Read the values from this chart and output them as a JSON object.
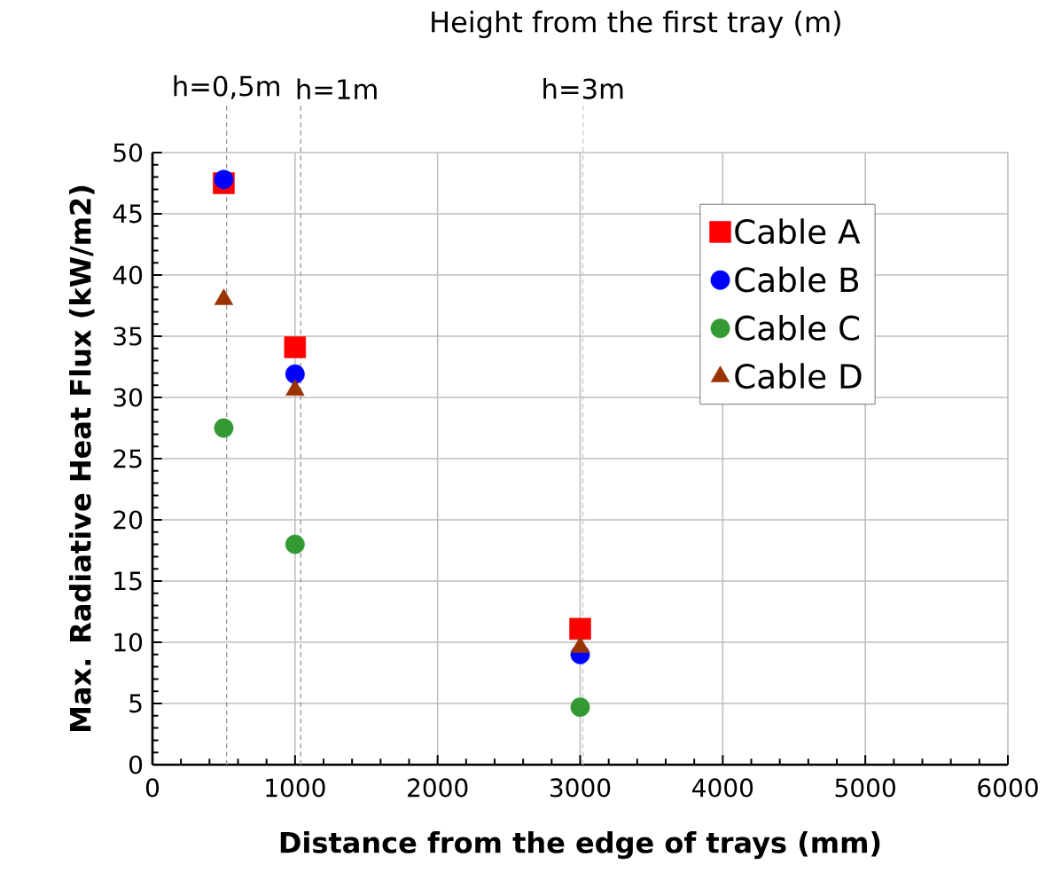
{
  "chart_data": {
    "type": "scatter",
    "title": "Height from the first tray (m)",
    "xlabel": "Distance from the edge of trays (mm)",
    "ylabel": "Max. Radiative Heat Flux (kW/m2)",
    "x": [
      500,
      1000,
      3000
    ],
    "series": [
      {
        "name": "Cable A",
        "color": "#ff0000",
        "marker": "square",
        "values": [
          47.5,
          34.1,
          11.1
        ]
      },
      {
        "name": "Cable B",
        "color": "#0000ff",
        "marker": "circle",
        "values": [
          47.8,
          31.9,
          9.0
        ]
      },
      {
        "name": "Cable C",
        "color": "#339933",
        "marker": "circle",
        "values": [
          27.5,
          18.0,
          4.7
        ]
      },
      {
        "name": "Cable D",
        "color": "#993300",
        "marker": "triangle",
        "values": [
          38.0,
          30.6,
          9.6
        ]
      }
    ],
    "xlim": [
      0,
      6000
    ],
    "ylim": [
      0,
      50
    ],
    "xticks": [
      0,
      1000,
      2000,
      3000,
      4000,
      5000,
      6000
    ],
    "yticks": [
      0,
      5,
      10,
      15,
      20,
      25,
      30,
      35,
      40,
      45,
      50
    ],
    "grid": true,
    "legend": "top right",
    "ref_lines": [
      {
        "axis": "x",
        "value": 520,
        "label": "h=0,5m",
        "color": "#999999",
        "line_style": "dashed"
      },
      {
        "axis": "x",
        "value": 1040,
        "label": "h=1m",
        "color": "#999999",
        "line_style": "dashed"
      },
      {
        "axis": "x",
        "value": 3020,
        "label": "h=3m",
        "color": "#cccccc",
        "line_style": "dashed"
      }
    ]
  }
}
